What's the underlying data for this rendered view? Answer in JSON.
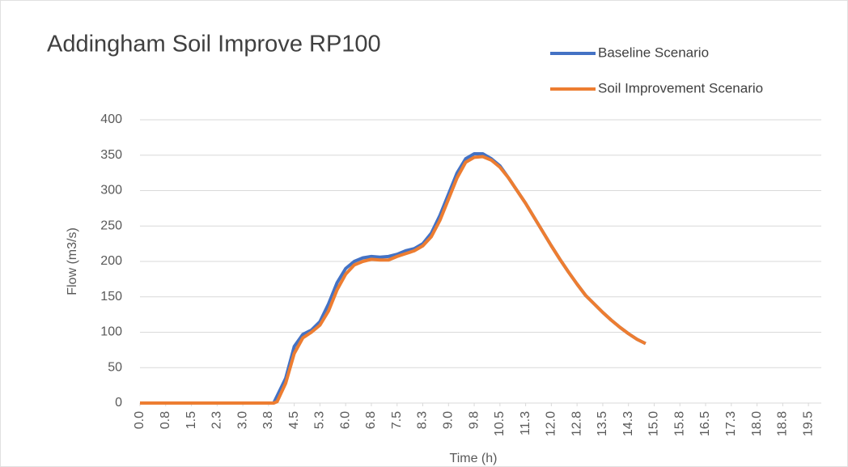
{
  "chart_data": {
    "type": "line",
    "title": "Addingham Soil Improve RP100",
    "x_label": "Time (h)",
    "y_label": "Flow (m3/s)",
    "x": [
      0,
      3.9,
      4.0,
      4.25,
      4.5,
      4.75,
      5.0,
      5.25,
      5.5,
      5.75,
      6.0,
      6.25,
      6.5,
      6.75,
      7.0,
      7.25,
      7.5,
      7.75,
      8.0,
      8.25,
      8.5,
      8.75,
      9.0,
      9.25,
      9.5,
      9.75,
      10.0,
      10.25,
      10.5,
      10.75,
      11.0,
      11.25,
      11.5,
      11.75,
      12.0,
      12.25,
      12.5,
      12.75,
      13.0,
      13.25,
      13.5,
      13.75,
      14.0,
      14.25,
      14.5,
      14.75
    ],
    "series": [
      {
        "name": "Baseline Scenario",
        "color": "#4472c4",
        "values": [
          0,
          0,
          10,
          35,
          80,
          97,
          103,
          115,
          140,
          170,
          190,
          200,
          205,
          207,
          206,
          207,
          210,
          215,
          218,
          225,
          240,
          265,
          295,
          325,
          345,
          352,
          352,
          345,
          335,
          318,
          300,
          282,
          262,
          242,
          222,
          203,
          185,
          168,
          152,
          140,
          128,
          117,
          107,
          98,
          90,
          84
        ]
      },
      {
        "name": "Soil Improvement Scenario",
        "color": "#ed7d31",
        "values": [
          0,
          0,
          2,
          28,
          70,
          92,
          100,
          110,
          130,
          160,
          182,
          195,
          200,
          203,
          202,
          202,
          207,
          211,
          215,
          222,
          235,
          258,
          288,
          318,
          340,
          347,
          348,
          343,
          333,
          318,
          300,
          282,
          262,
          242,
          222,
          203,
          185,
          168,
          152,
          140,
          128,
          117,
          107,
          98,
          90,
          84
        ]
      }
    ],
    "xlim": [
      0,
      19.875
    ],
    "xticks": [
      {
        "value": 0,
        "label": "0.0"
      },
      {
        "value": 0.75,
        "label": "0.8"
      },
      1.5,
      {
        "value": 2.25,
        "label": "2.3"
      },
      {
        "value": 3,
        "label": "3.0"
      },
      {
        "value": 3.75,
        "label": "3.8"
      },
      4.5,
      {
        "value": 5.25,
        "label": "5.3"
      },
      {
        "value": 6,
        "label": "6.0"
      },
      {
        "value": 6.75,
        "label": "6.8"
      },
      7.5,
      {
        "value": 8.25,
        "label": "8.3"
      },
      {
        "value": 9,
        "label": "9.0"
      },
      {
        "value": 9.75,
        "label": "9.8"
      },
      10.5,
      {
        "value": 11.25,
        "label": "11.3"
      },
      {
        "value": 12,
        "label": "12.0"
      },
      {
        "value": 12.75,
        "label": "12.8"
      },
      13.5,
      {
        "value": 14.25,
        "label": "14.3"
      },
      {
        "value": 15,
        "label": "15.0"
      },
      {
        "value": 15.75,
        "label": "15.8"
      },
      16.5,
      {
        "value": 17.25,
        "label": "17.3"
      },
      {
        "value": 18,
        "label": "18.0"
      },
      {
        "value": 18.75,
        "label": "18.8"
      },
      19.5
    ],
    "ylim": [
      0,
      400
    ],
    "yticks": [
      0,
      50,
      100,
      150,
      200,
      250,
      300,
      350,
      400
    ],
    "grid": true,
    "legend": "top-right"
  }
}
